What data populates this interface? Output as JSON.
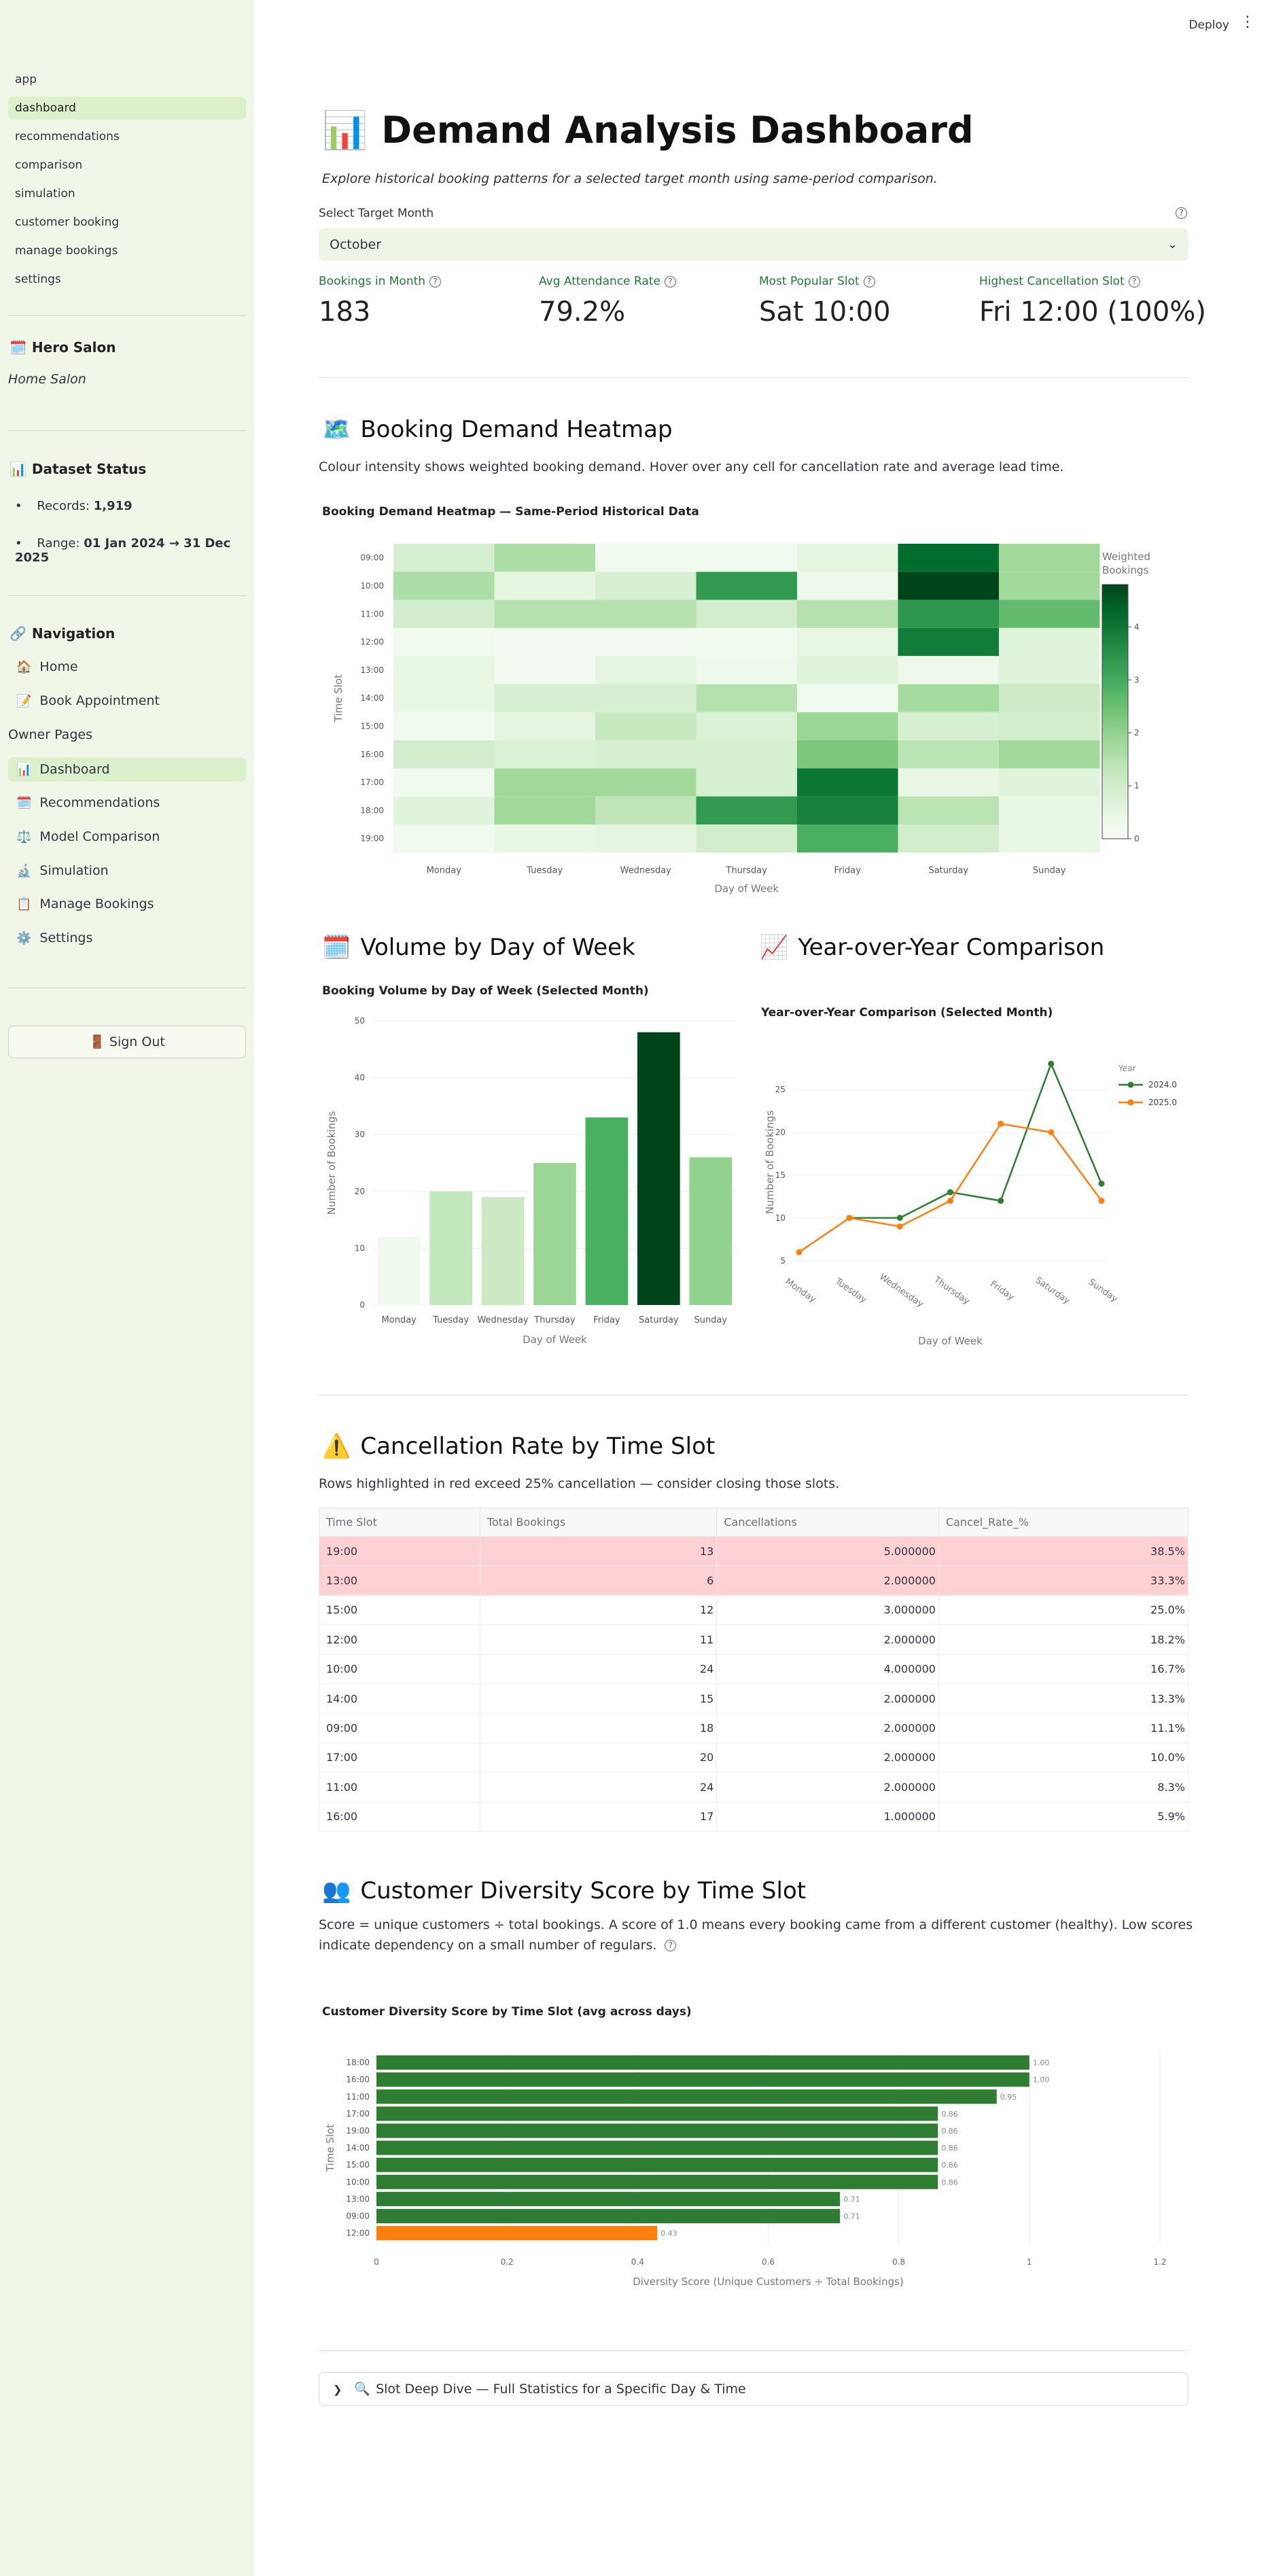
{
  "topbar": {
    "deploy_label": "Deploy",
    "menu_icon": "kebab-menu-icon"
  },
  "sidebar": {
    "pages": [
      "app",
      "dashboard",
      "recommendations",
      "comparison",
      "simulation",
      "customer booking",
      "manage bookings",
      "settings"
    ],
    "active_page": "dashboard",
    "salon_icon": "calendar-icon",
    "salon_name": "Hero Salon",
    "salon_subtitle": "Home Salon",
    "dataset_icon": "bar-chart-icon",
    "dataset_heading": "Dataset Status",
    "records_label": "Records:",
    "records_value": "1,919",
    "range_label": "Range:",
    "range_value": "01 Jan 2024 → 31 Dec 2025",
    "nav_icon": "link-icon",
    "nav_heading": "Navigation",
    "nav_items": [
      {
        "label": "Home",
        "icon": "house-icon"
      },
      {
        "label": "Book Appointment",
        "icon": "memo-icon"
      }
    ],
    "owner_heading": "Owner Pages",
    "owner_items": [
      {
        "label": "Dashboard",
        "icon": "bar-chart-icon"
      },
      {
        "label": "Recommendations",
        "icon": "calendar-icon"
      },
      {
        "label": "Model Comparison",
        "icon": "scales-icon"
      },
      {
        "label": "Simulation",
        "icon": "microscope-icon"
      },
      {
        "label": "Manage Bookings",
        "icon": "clipboard-icon"
      },
      {
        "label": "Settings",
        "icon": "gear-icon"
      }
    ],
    "signout_label": "Sign Out",
    "signout_icon": "door-icon"
  },
  "header": {
    "title_icon": "bar-chart-icon",
    "title": "Demand Analysis Dashboard",
    "subtitle": "Explore historical booking patterns for a selected target month using same-period comparison."
  },
  "month_select": {
    "label": "Select Target Month",
    "value": "October"
  },
  "metrics": [
    {
      "label": "Bookings in Month",
      "value": "183"
    },
    {
      "label": "Avg Attendance Rate",
      "value": "79.2%"
    },
    {
      "label": "Most Popular Slot",
      "value": "Sat 10:00"
    },
    {
      "label": "Highest Cancellation Slot",
      "value": "Fri 12:00 (100%)"
    }
  ],
  "heatmap_section": {
    "icon": "map-icon",
    "title": "Booking Demand Heatmap",
    "description": "Colour intensity shows weighted booking demand. Hover over any cell for cancellation rate and average lead time."
  },
  "volume_section": {
    "icon": "calendar-icon",
    "title": "Volume by Day of Week"
  },
  "yoy_section": {
    "icon": "chart-increasing-icon",
    "title": "Year-over-Year Comparison"
  },
  "cancel_section": {
    "icon": "warning-icon",
    "title": "Cancellation Rate by Time Slot",
    "description": "Rows highlighted in red exceed 25% cancellation — consider closing those slots.",
    "columns": [
      "Time Slot",
      "Total Bookings",
      "Cancellations",
      "Cancel_Rate_%"
    ],
    "rows": [
      {
        "slot": "19:00",
        "total": "13",
        "cancels": "5.000000",
        "rate": "38.5%",
        "highlight": true
      },
      {
        "slot": "13:00",
        "total": "6",
        "cancels": "2.000000",
        "rate": "33.3%",
        "highlight": true
      },
      {
        "slot": "15:00",
        "total": "12",
        "cancels": "3.000000",
        "rate": "25.0%",
        "highlight": false
      },
      {
        "slot": "12:00",
        "total": "11",
        "cancels": "2.000000",
        "rate": "18.2%",
        "highlight": false
      },
      {
        "slot": "10:00",
        "total": "24",
        "cancels": "4.000000",
        "rate": "16.7%",
        "highlight": false
      },
      {
        "slot": "14:00",
        "total": "15",
        "cancels": "2.000000",
        "rate": "13.3%",
        "highlight": false
      },
      {
        "slot": "09:00",
        "total": "18",
        "cancels": "2.000000",
        "rate": "11.1%",
        "highlight": false
      },
      {
        "slot": "17:00",
        "total": "20",
        "cancels": "2.000000",
        "rate": "10.0%",
        "highlight": false
      },
      {
        "slot": "11:00",
        "total": "24",
        "cancels": "2.000000",
        "rate": "8.3%",
        "highlight": false
      },
      {
        "slot": "16:00",
        "total": "17",
        "cancels": "1.000000",
        "rate": "5.9%",
        "highlight": false
      }
    ]
  },
  "diversity_section": {
    "icon": "people-icon",
    "title": "Customer Diversity Score by Time Slot",
    "description": "Score = unique customers ÷ total bookings. A score of 1.0 means every booking came from a different customer (healthy). Low scores indicate dependency on a small number of regulars."
  },
  "expander": {
    "icon": "magnifier-icon",
    "label": "Slot Deep Dive — Full Statistics for a Specific Day & Time"
  },
  "chart_data": [
    {
      "type": "heatmap",
      "title": "Booking Demand Heatmap — Same-Period Historical Data",
      "xlabel": "Day of Week",
      "ylabel": "Time Slot",
      "colorbar_title": "Weighted Bookings",
      "colorbar_ticks": [
        "0",
        "1",
        "2",
        "3",
        "4"
      ],
      "colorbar_range": [
        0,
        4.8
      ],
      "x": [
        "Monday",
        "Tuesday",
        "Wednesday",
        "Thursday",
        "Friday",
        "Saturday",
        "Sunday"
      ],
      "y": [
        "09:00",
        "10:00",
        "11:00",
        "12:00",
        "13:00",
        "14:00",
        "15:00",
        "16:00",
        "17:00",
        "18:00",
        "19:00"
      ],
      "z": [
        [
          0.9,
          1.6,
          0.2,
          0.2,
          0.6,
          4.2,
          1.8
        ],
        [
          1.6,
          0.6,
          0.9,
          3.3,
          0.3,
          4.8,
          1.8
        ],
        [
          1.0,
          1.5,
          1.5,
          1.0,
          1.5,
          3.4,
          2.6
        ],
        [
          0.2,
          0.1,
          0.1,
          0.2,
          0.5,
          3.9,
          0.7
        ],
        [
          0.5,
          0.1,
          0.6,
          0.3,
          0.7,
          0.3,
          0.7
        ],
        [
          0.5,
          0.9,
          0.9,
          1.5,
          0.2,
          1.7,
          1.1
        ],
        [
          0.2,
          0.6,
          1.2,
          0.8,
          1.9,
          0.9,
          1.0
        ],
        [
          1.0,
          0.8,
          0.9,
          0.9,
          2.3,
          1.4,
          1.8
        ],
        [
          0.2,
          1.8,
          1.8,
          0.9,
          4.0,
          0.5,
          0.7
        ],
        [
          0.7,
          1.8,
          1.3,
          3.3,
          3.8,
          1.4,
          0.5
        ],
        [
          0.2,
          0.5,
          0.6,
          1.0,
          2.9,
          1.0,
          0.5
        ]
      ]
    },
    {
      "type": "bar",
      "title": "Booking Volume by Day of Week (Selected Month)",
      "xlabel": "Day of Week",
      "ylabel": "Number of Bookings",
      "categories": [
        "Monday",
        "Tuesday",
        "Wednesday",
        "Thursday",
        "Friday",
        "Saturday",
        "Sunday"
      ],
      "values": [
        12,
        20,
        19,
        25,
        33,
        48,
        26
      ],
      "ylim": [
        0,
        50
      ],
      "yticks": [
        0,
        10,
        20,
        30,
        40,
        50
      ]
    },
    {
      "type": "line",
      "title": "Year-over-Year Comparison (Selected Month)",
      "xlabel": "Day of Week",
      "ylabel": "Number of Bookings",
      "legend_title": "Year",
      "legend_position": "top-right",
      "categories": [
        "Monday",
        "Tuesday",
        "Wednesday",
        "Thursday",
        "Friday",
        "Saturday",
        "Sunday"
      ],
      "ylim": [
        3,
        30
      ],
      "yticks": [
        5,
        10,
        15,
        20,
        25
      ],
      "series": [
        {
          "name": "2024.0",
          "color": "#2e7d32",
          "values": [
            null,
            10,
            10,
            13,
            12,
            28,
            14
          ]
        },
        {
          "name": "2025.0",
          "color": "#ff7f0e",
          "values": [
            6,
            10,
            9,
            12,
            21,
            20,
            12
          ]
        }
      ]
    },
    {
      "type": "bar",
      "orientation": "horizontal",
      "title": "Customer Diversity Score by Time Slot (avg across days)",
      "xlabel": "Diversity Score (Unique Customers ÷ Total Bookings)",
      "ylabel": "Time Slot",
      "xlim": [
        0,
        1.2
      ],
      "xticks": [
        "0",
        "0.2",
        "0.4",
        "0.6",
        "0.8",
        "1",
        "1.2"
      ],
      "categories": [
        "18:00",
        "16:00",
        "11:00",
        "17:00",
        "19:00",
        "14:00",
        "15:00",
        "10:00",
        "13:00",
        "09:00",
        "12:00"
      ],
      "values": [
        1.0,
        1.0,
        0.95,
        0.86,
        0.86,
        0.86,
        0.86,
        0.86,
        0.71,
        0.71,
        0.43
      ],
      "labels": [
        "1.00",
        "1.00",
        "0.95",
        "0.86",
        "0.86",
        "0.86",
        "0.86",
        "0.86",
        "0.71",
        "0.71",
        "0.43"
      ],
      "colors": {
        "normal": "#2e7d32",
        "low": "#ff7f0e"
      }
    }
  ]
}
